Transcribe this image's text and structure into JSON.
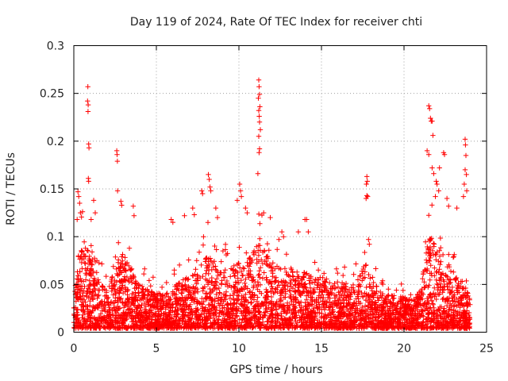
{
  "chart_data": {
    "type": "scatter",
    "title": "Day 119 of 2024, Rate Of TEC Index for receiver chti",
    "xlabel": "GPS time / hours",
    "ylabel": "ROTI / TECUs",
    "xlim": [
      0,
      25
    ],
    "ylim": [
      0,
      0.3
    ],
    "xticks": [
      0,
      5,
      10,
      15,
      20,
      25
    ],
    "xtick_labels": [
      "0",
      "5",
      "10",
      "15",
      "20",
      "25"
    ],
    "yticks": [
      0,
      0.05,
      0.1,
      0.15,
      0.2,
      0.25,
      0.3
    ],
    "ytick_labels": [
      "0",
      "0.05",
      "0.1",
      "0.15",
      "0.2",
      "0.25",
      "0.3"
    ],
    "grid": true,
    "marker": "+",
    "marker_color": "#ff0000",
    "series": [
      {
        "name": "ROTI",
        "envelope": {
          "x": [
            0,
            0.3,
            0.8,
            1.2,
            2.0,
            2.6,
            3.0,
            3.8,
            4.5,
            5.5,
            6.5,
            7.5,
            8.2,
            9.0,
            10.0,
            10.6,
            11.2,
            12.0,
            13.0,
            14.0,
            15.0,
            16.0,
            17.0,
            17.7,
            18.5,
            19.5,
            20.5,
            21.0,
            21.5,
            22.2,
            23.0,
            23.6,
            24.0
          ],
          "y": [
            0.03,
            0.08,
            0.09,
            0.06,
            0.04,
            0.07,
            0.08,
            0.05,
            0.04,
            0.035,
            0.05,
            0.06,
            0.08,
            0.06,
            0.07,
            0.075,
            0.09,
            0.07,
            0.065,
            0.06,
            0.055,
            0.05,
            0.045,
            0.07,
            0.04,
            0.035,
            0.03,
            0.04,
            0.1,
            0.08,
            0.06,
            0.05,
            0.03
          ]
        },
        "outliers": [
          {
            "x": 0.25,
            "y": 0.147
          },
          {
            "x": 0.3,
            "y": 0.142
          },
          {
            "x": 0.35,
            "y": 0.135
          },
          {
            "x": 0.4,
            "y": 0.125
          },
          {
            "x": 0.2,
            "y": 0.118
          },
          {
            "x": 0.85,
            "y": 0.257
          },
          {
            "x": 0.83,
            "y": 0.242
          },
          {
            "x": 0.87,
            "y": 0.238
          },
          {
            "x": 0.86,
            "y": 0.231
          },
          {
            "x": 0.9,
            "y": 0.197
          },
          {
            "x": 0.92,
            "y": 0.193
          },
          {
            "x": 0.88,
            "y": 0.161
          },
          {
            "x": 0.9,
            "y": 0.158
          },
          {
            "x": 1.2,
            "y": 0.138
          },
          {
            "x": 1.3,
            "y": 0.125
          },
          {
            "x": 1.05,
            "y": 0.118
          },
          {
            "x": 2.6,
            "y": 0.19
          },
          {
            "x": 2.62,
            "y": 0.186
          },
          {
            "x": 2.64,
            "y": 0.179
          },
          {
            "x": 2.65,
            "y": 0.148
          },
          {
            "x": 2.85,
            "y": 0.137
          },
          {
            "x": 2.9,
            "y": 0.133
          },
          {
            "x": 3.6,
            "y": 0.132
          },
          {
            "x": 3.65,
            "y": 0.122
          },
          {
            "x": 5.9,
            "y": 0.118
          },
          {
            "x": 6.0,
            "y": 0.115
          },
          {
            "x": 6.7,
            "y": 0.122
          },
          {
            "x": 7.2,
            "y": 0.13
          },
          {
            "x": 7.3,
            "y": 0.123
          },
          {
            "x": 7.75,
            "y": 0.148
          },
          {
            "x": 7.8,
            "y": 0.145
          },
          {
            "x": 8.15,
            "y": 0.165
          },
          {
            "x": 8.2,
            "y": 0.16
          },
          {
            "x": 8.25,
            "y": 0.152
          },
          {
            "x": 8.3,
            "y": 0.148
          },
          {
            "x": 8.6,
            "y": 0.13
          },
          {
            "x": 8.7,
            "y": 0.12
          },
          {
            "x": 10.05,
            "y": 0.155
          },
          {
            "x": 10.1,
            "y": 0.148
          },
          {
            "x": 10.15,
            "y": 0.142
          },
          {
            "x": 9.9,
            "y": 0.138
          },
          {
            "x": 10.4,
            "y": 0.13
          },
          {
            "x": 10.5,
            "y": 0.125
          },
          {
            "x": 11.2,
            "y": 0.264
          },
          {
            "x": 11.22,
            "y": 0.257
          },
          {
            "x": 11.25,
            "y": 0.249
          },
          {
            "x": 11.18,
            "y": 0.245
          },
          {
            "x": 11.27,
            "y": 0.236
          },
          {
            "x": 11.2,
            "y": 0.232
          },
          {
            "x": 11.23,
            "y": 0.226
          },
          {
            "x": 11.25,
            "y": 0.22
          },
          {
            "x": 11.3,
            "y": 0.212
          },
          {
            "x": 11.2,
            "y": 0.205
          },
          {
            "x": 11.25,
            "y": 0.192
          },
          {
            "x": 11.22,
            "y": 0.188
          },
          {
            "x": 11.15,
            "y": 0.166
          },
          {
            "x": 11.5,
            "y": 0.125
          },
          {
            "x": 11.9,
            "y": 0.12
          },
          {
            "x": 12.6,
            "y": 0.105
          },
          {
            "x": 12.7,
            "y": 0.1
          },
          {
            "x": 14.0,
            "y": 0.118
          },
          {
            "x": 14.1,
            "y": 0.118
          },
          {
            "x": 13.6,
            "y": 0.105
          },
          {
            "x": 14.2,
            "y": 0.105
          },
          {
            "x": 17.75,
            "y": 0.163
          },
          {
            "x": 17.78,
            "y": 0.158
          },
          {
            "x": 17.72,
            "y": 0.155
          },
          {
            "x": 17.75,
            "y": 0.143
          },
          {
            "x": 17.8,
            "y": 0.142
          },
          {
            "x": 17.7,
            "y": 0.14
          },
          {
            "x": 17.85,
            "y": 0.097
          },
          {
            "x": 17.9,
            "y": 0.092
          },
          {
            "x": 21.5,
            "y": 0.237
          },
          {
            "x": 21.55,
            "y": 0.234
          },
          {
            "x": 21.6,
            "y": 0.224
          },
          {
            "x": 21.65,
            "y": 0.221
          },
          {
            "x": 21.7,
            "y": 0.221
          },
          {
            "x": 21.75,
            "y": 0.206
          },
          {
            "x": 21.4,
            "y": 0.19
          },
          {
            "x": 21.5,
            "y": 0.186
          },
          {
            "x": 21.7,
            "y": 0.172
          },
          {
            "x": 21.8,
            "y": 0.166
          },
          {
            "x": 21.95,
            "y": 0.158
          },
          {
            "x": 22.0,
            "y": 0.155
          },
          {
            "x": 22.15,
            "y": 0.172
          },
          {
            "x": 22.1,
            "y": 0.148
          },
          {
            "x": 21.9,
            "y": 0.142
          },
          {
            "x": 22.4,
            "y": 0.188
          },
          {
            "x": 22.45,
            "y": 0.186
          },
          {
            "x": 22.6,
            "y": 0.14
          },
          {
            "x": 22.7,
            "y": 0.132
          },
          {
            "x": 23.2,
            "y": 0.13
          },
          {
            "x": 23.7,
            "y": 0.202
          },
          {
            "x": 23.72,
            "y": 0.196
          },
          {
            "x": 23.75,
            "y": 0.185
          },
          {
            "x": 23.7,
            "y": 0.17
          },
          {
            "x": 23.78,
            "y": 0.165
          },
          {
            "x": 23.65,
            "y": 0.155
          },
          {
            "x": 23.8,
            "y": 0.148
          },
          {
            "x": 23.6,
            "y": 0.142
          }
        ]
      }
    ]
  }
}
